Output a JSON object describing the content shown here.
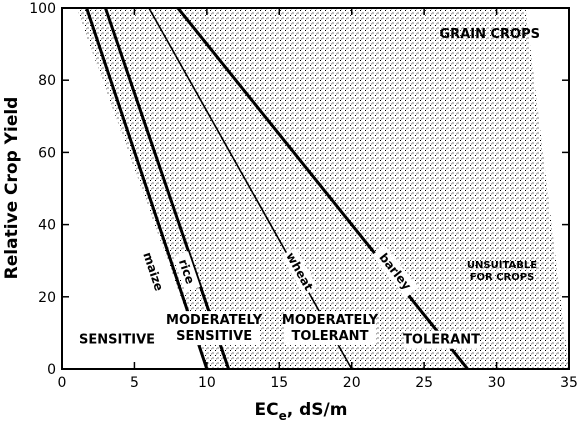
{
  "chart_data": {
    "type": "line",
    "title": "GRAIN CROPS",
    "xlabel": "ECe, dS/m",
    "ylabel": "Relative Crop Yield",
    "xlim": [
      0,
      35
    ],
    "ylim": [
      0,
      100
    ],
    "x_ticks": [
      "0",
      "5",
      "10",
      "15",
      "20",
      "25",
      "30",
      "35"
    ],
    "y_ticks": [
      "0",
      "20",
      "40",
      "60",
      "80",
      "100"
    ],
    "grid": false,
    "legend": "none",
    "bands": [
      {
        "name": "SENSITIVE",
        "lines": [
          "SENSITIVE"
        ],
        "top": [
          1,
          6
        ],
        "bottom": [
          10,
          11
        ],
        "label_x": 3.8,
        "label_y": 7
      },
      {
        "name": "MODERATELY SENSITIVE",
        "lines": [
          "MODERATELY",
          "SENSITIVE"
        ],
        "top": [
          6,
          10.5
        ],
        "bottom": [
          11,
          20
        ],
        "label_x": 10.5,
        "label_y": 8
      },
      {
        "name": "MODERATELY TOLERANT",
        "lines": [
          "MODERATELY",
          "TOLERANT"
        ],
        "top": [
          10.5,
          15.5
        ],
        "bottom": [
          20,
          32
        ],
        "label_x": 18.5,
        "label_y": 8
      },
      {
        "name": "TOLERANT",
        "lines": [
          "TOLERANT"
        ],
        "top": [
          15.5,
          32
        ],
        "bottom": [
          32,
          35
        ],
        "label_x": 26.2,
        "label_y": 7
      }
    ],
    "region_note": [
      "UNSUITABLE",
      "FOR CROPS"
    ],
    "series": [
      {
        "name": "maize",
        "x": [
          1.7,
          10.0
        ],
        "y": [
          100,
          0
        ],
        "heavy": true,
        "label_x": 6.3,
        "label_y": 27
      },
      {
        "name": "rice",
        "x": [
          3.0,
          11.5
        ],
        "y": [
          100,
          0
        ],
        "heavy": true,
        "label_x": 8.6,
        "label_y": 27
      },
      {
        "name": "wheat",
        "x": [
          6.0,
          20.0
        ],
        "y": [
          100,
          0
        ],
        "heavy": false,
        "label_x": 16.4,
        "label_y": 27
      },
      {
        "name": "barley",
        "x": [
          8.0,
          28.0
        ],
        "y": [
          100,
          0
        ],
        "heavy": true,
        "label_x": 23.0,
        "label_y": 27
      }
    ]
  },
  "labels": {
    "title": "GRAIN CROPS",
    "ylabel": "Relative Crop Yield",
    "xlabel_main": "EC",
    "xlabel_sub": "e",
    "xlabel_unit": ", dS/m",
    "unsuitable_1": "UNSUITABLE",
    "unsuitable_2": "FOR CROPS"
  }
}
